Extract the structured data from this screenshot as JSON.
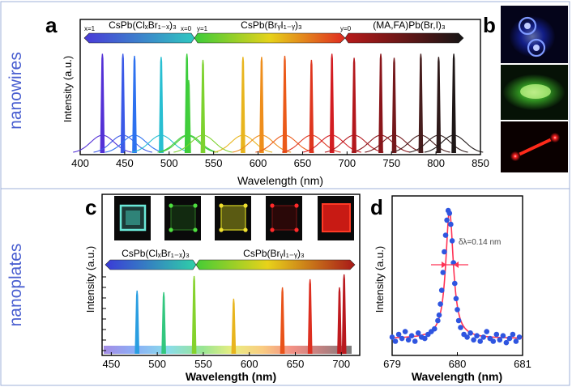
{
  "sections": {
    "top": "nanowires",
    "bottom": "nanoplates"
  },
  "panel_labels": {
    "a": "a",
    "b": "b",
    "c": "c",
    "d": "d"
  },
  "panel_a": {
    "composition_bar": {
      "segments": [
        {
          "label": "CsPb(ClₓBr₁₋ₓ)₃",
          "start_label": "x=1",
          "end_label": "x=0"
        },
        {
          "label": "CsPb(BrᵧI₁₋ᵧ)₃",
          "start_label": "y=1",
          "end_label": "y=0"
        },
        {
          "label": "(MA,FA)Pb(Br,I)₃"
        }
      ]
    },
    "colors": {
      "violet": "#5b2fbf",
      "blue": "#2f7fd6",
      "green": "#3cc23c",
      "yellow": "#e3d21e",
      "orange": "#f08a1e",
      "red": "#d8222a",
      "black": "#222222"
    }
  },
  "panel_b": {
    "images": [
      {
        "name": "blue-nanowire-emission",
        "color": "#1c2fd0"
      },
      {
        "name": "green-nanowire-emission",
        "color": "#3fbf2a"
      },
      {
        "name": "red-nanowire-emission",
        "color": "#e5121b"
      }
    ]
  },
  "panel_c": {
    "composition_bar": {
      "segments": [
        {
          "label": "CsPb(ClₓBr₁₋ₓ)₃"
        },
        {
          "label": "CsPb(BrᵧI₁₋ᵧ)₃"
        }
      ]
    },
    "images": [
      {
        "name": "cyan-nanoplate",
        "color": "#4fd6c8"
      },
      {
        "name": "green-nanoplate",
        "color": "#45c43a"
      },
      {
        "name": "yellow-nanoplate",
        "color": "#d8d21e"
      },
      {
        "name": "red-nanoplate",
        "color": "#d11a1a"
      },
      {
        "name": "bright-red-nanoplate",
        "color": "#ff2a1a"
      }
    ]
  },
  "panel_d": {
    "annotation": "δλ=0.14 nm",
    "fit_color": "#ff3355",
    "point_color": "#2f55e0"
  },
  "chart_data": [
    {
      "id": "a",
      "type": "line",
      "title": "",
      "xlabel": "Wavelength (nm)",
      "ylabel": "Intensity (a.u.)",
      "xlim": [
        400,
        850
      ],
      "xticks": [
        400,
        450,
        500,
        550,
        600,
        650,
        700,
        750,
        800,
        850
      ],
      "series": [
        {
          "name": "lasing peaks",
          "peaks": [
            425,
            448,
            461,
            491,
            520,
            522,
            538,
            583,
            604,
            630,
            660,
            683,
            708,
            738,
            753,
            783,
            803,
            820
          ],
          "heights": [
            0.98,
            0.98,
            0.96,
            0.95,
            0.98,
            0.72,
            0.92,
            0.95,
            0.95,
            0.96,
            0.92,
            0.98,
            0.94,
            0.98,
            0.94,
            0.98,
            0.95,
            0.98
          ]
        }
      ]
    },
    {
      "id": "c",
      "type": "line",
      "title": "",
      "xlabel": "Wavelength (nm)",
      "ylabel": "Intensity (a.u.)",
      "xlim": [
        440,
        720
      ],
      "xticks": [
        450,
        500,
        550,
        600,
        650,
        700
      ],
      "series": [
        {
          "name": "lasing peaks",
          "peaks": [
            478,
            507,
            540,
            583,
            636,
            666,
            698,
            703
          ],
          "heights": [
            0.78,
            0.76,
            0.96,
            0.68,
            0.82,
            0.92,
            0.82,
            0.98
          ]
        }
      ]
    },
    {
      "id": "d",
      "type": "scatter",
      "title": "",
      "xlabel": "Wavelength (nm)",
      "ylabel": "Intensity (a.u.)",
      "xlim": [
        679,
        681
      ],
      "xticks": [
        679,
        680,
        681
      ],
      "fit": {
        "type": "lorentzian",
        "center": 679.88,
        "fwhm": 0.14
      },
      "points_x": [
        679.0,
        679.05,
        679.1,
        679.15,
        679.2,
        679.25,
        679.3,
        679.35,
        679.4,
        679.45,
        679.5,
        679.55,
        679.6,
        679.65,
        679.7,
        679.72,
        679.74,
        679.76,
        679.78,
        679.8,
        679.82,
        679.84,
        679.86,
        679.88,
        679.9,
        679.92,
        679.94,
        679.96,
        679.98,
        680.0,
        680.02,
        680.05,
        680.1,
        680.15,
        680.2,
        680.25,
        680.3,
        680.35,
        680.4,
        680.45,
        680.5,
        680.55,
        680.6,
        680.65,
        680.7,
        680.75,
        680.8,
        680.85,
        680.9,
        680.95
      ],
      "points_y": [
        0.08,
        0.05,
        0.1,
        0.07,
        0.12,
        0.06,
        0.09,
        0.05,
        0.11,
        0.08,
        0.07,
        0.1,
        0.12,
        0.14,
        0.2,
        0.24,
        0.32,
        0.42,
        0.55,
        0.7,
        0.82,
        0.93,
        1.0,
        0.98,
        0.9,
        0.78,
        0.62,
        0.47,
        0.36,
        0.28,
        0.2,
        0.15,
        0.1,
        0.08,
        0.11,
        0.06,
        0.09,
        0.05,
        0.08,
        0.12,
        0.07,
        0.05,
        0.1,
        0.06,
        0.09,
        0.04,
        0.07,
        0.1,
        0.05,
        0.08
      ]
    }
  ]
}
